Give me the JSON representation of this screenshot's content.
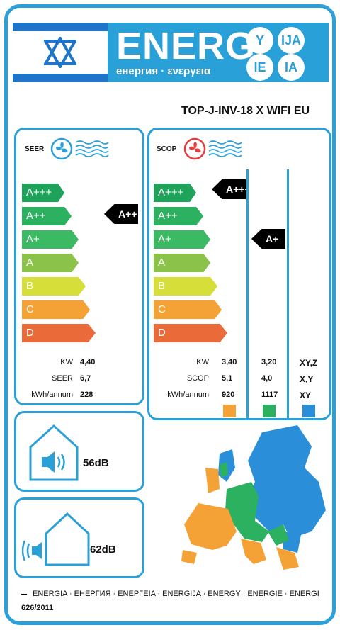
{
  "header": {
    "energ_word": "ENERG",
    "energ_sub": "енергия · ενεργεια",
    "circles": [
      "Y",
      "IJA",
      "IE",
      "IA"
    ],
    "flag_icon": "israel-flag"
  },
  "model": "TOP-J-INV-18 X WIFI EU",
  "classes": [
    "A+++",
    "A++",
    "A+",
    "A",
    "B",
    "C",
    "D"
  ],
  "colors": {
    "A+++": "#1fa35a",
    "A++": "#2bb15f",
    "A+": "#3cba63",
    "A": "#8ac24a",
    "B": "#d6df3a",
    "C": "#f4a236",
    "D": "#ea6a3a",
    "frame": "#2aa0d8"
  },
  "seer": {
    "title": "SEER",
    "icon": "cooling-fan-icon",
    "rating": "A++",
    "rows": [
      {
        "label": "KW",
        "value": "4,40"
      },
      {
        "label": "SEER",
        "value": "6,7"
      },
      {
        "label": "kWh/annum",
        "value": "228"
      }
    ]
  },
  "scop": {
    "title": "SCOP",
    "icon": "heating-fan-icon",
    "ratings": [
      "A+++",
      "A+"
    ],
    "labels": [
      "KW",
      "SCOP",
      "kWh/annum"
    ],
    "columns": [
      {
        "values": [
          "3,40",
          "5,1",
          "920"
        ],
        "swatch": "#f4a236"
      },
      {
        "values": [
          "3,20",
          "4,0",
          "1117"
        ],
        "swatch": "#2bb15f"
      },
      {
        "values": [
          "XY,Z",
          "X,Y",
          "XY"
        ],
        "swatch": "#2a8fd8"
      }
    ]
  },
  "noise": {
    "indoor": "56dB",
    "outdoor": "62dB"
  },
  "footer": {
    "languages": "ENERGIA · ЕНЕРГИЯ · ΕΝΕΡΓΕΙΑ · ENERGIJA · ENERGY · ENERGIE · ENERGI",
    "regulation": "626/2011"
  }
}
